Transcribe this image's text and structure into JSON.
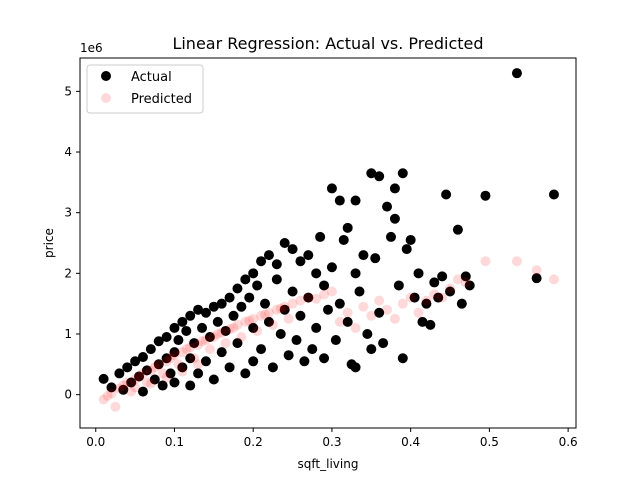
{
  "chart_data": {
    "type": "scatter",
    "title": "Linear Regression: Actual vs. Predicted",
    "xlabel": "sqft_living",
    "ylabel": "price",
    "y_offset_label": "1e6",
    "xlim": [
      -0.02,
      0.61
    ],
    "ylim": [
      -0.55,
      5.55
    ],
    "x_ticks": [
      0.0,
      0.1,
      0.2,
      0.3,
      0.4,
      0.5,
      0.6
    ],
    "x_tick_labels": [
      "0.0",
      "0.1",
      "0.2",
      "0.3",
      "0.4",
      "0.5",
      "0.6"
    ],
    "y_ticks": [
      0,
      1,
      2,
      3,
      4,
      5
    ],
    "y_tick_labels": [
      "0",
      "1",
      "2",
      "3",
      "4",
      "5"
    ],
    "grid": false,
    "legend": "top-left",
    "series": [
      {
        "name": "Actual",
        "color": "#000000",
        "opacity": 1.0,
        "points": [
          [
            0.01,
            0.26
          ],
          [
            0.02,
            0.12
          ],
          [
            0.03,
            0.35
          ],
          [
            0.035,
            0.08
          ],
          [
            0.04,
            0.45
          ],
          [
            0.045,
            0.2
          ],
          [
            0.05,
            0.55
          ],
          [
            0.055,
            0.3
          ],
          [
            0.06,
            0.62
          ],
          [
            0.06,
            0.05
          ],
          [
            0.065,
            0.4
          ],
          [
            0.07,
            0.75
          ],
          [
            0.075,
            0.25
          ],
          [
            0.08,
            0.88
          ],
          [
            0.08,
            0.5
          ],
          [
            0.085,
            0.15
          ],
          [
            0.09,
            0.95
          ],
          [
            0.09,
            0.6
          ],
          [
            0.095,
            0.35
          ],
          [
            0.1,
            1.1
          ],
          [
            0.1,
            0.7
          ],
          [
            0.1,
            0.2
          ],
          [
            0.105,
            0.9
          ],
          [
            0.11,
            1.2
          ],
          [
            0.11,
            0.45
          ],
          [
            0.115,
            1.05
          ],
          [
            0.12,
            1.3
          ],
          [
            0.12,
            0.6
          ],
          [
            0.12,
            0.15
          ],
          [
            0.125,
            0.85
          ],
          [
            0.13,
            1.4
          ],
          [
            0.13,
            0.35
          ],
          [
            0.135,
            1.1
          ],
          [
            0.14,
            1.35
          ],
          [
            0.14,
            0.55
          ],
          [
            0.145,
            0.95
          ],
          [
            0.15,
            1.45
          ],
          [
            0.15,
            0.25
          ],
          [
            0.155,
            1.2
          ],
          [
            0.16,
            1.5
          ],
          [
            0.16,
            0.7
          ],
          [
            0.165,
            1.05
          ],
          [
            0.17,
            1.6
          ],
          [
            0.17,
            0.45
          ],
          [
            0.175,
            1.3
          ],
          [
            0.18,
            1.75
          ],
          [
            0.18,
            0.85
          ],
          [
            0.185,
            1.45
          ],
          [
            0.19,
            1.9
          ],
          [
            0.19,
            0.35
          ],
          [
            0.195,
            1.6
          ],
          [
            0.2,
            2.0
          ],
          [
            0.2,
            1.1
          ],
          [
            0.2,
            0.55
          ],
          [
            0.205,
            1.8
          ],
          [
            0.21,
            2.2
          ],
          [
            0.21,
            0.75
          ],
          [
            0.215,
            1.5
          ],
          [
            0.22,
            2.3
          ],
          [
            0.22,
            1.2
          ],
          [
            0.225,
            0.45
          ],
          [
            0.23,
            1.9
          ],
          [
            0.23,
            2.15
          ],
          [
            0.235,
            1.0
          ],
          [
            0.24,
            2.5
          ],
          [
            0.24,
            1.4
          ],
          [
            0.245,
            0.65
          ],
          [
            0.25,
            2.4
          ],
          [
            0.25,
            1.7
          ],
          [
            0.255,
            0.9
          ],
          [
            0.26,
            2.2
          ],
          [
            0.26,
            1.3
          ],
          [
            0.265,
            0.55
          ],
          [
            0.27,
            2.3
          ],
          [
            0.27,
            1.6
          ],
          [
            0.275,
            0.75
          ],
          [
            0.28,
            2.0
          ],
          [
            0.28,
            1.1
          ],
          [
            0.285,
            2.6
          ],
          [
            0.29,
            1.8
          ],
          [
            0.29,
            0.6
          ],
          [
            0.295,
            1.4
          ],
          [
            0.3,
            3.4
          ],
          [
            0.3,
            2.1
          ],
          [
            0.305,
            0.9
          ],
          [
            0.31,
            3.2
          ],
          [
            0.31,
            1.5
          ],
          [
            0.315,
            2.55
          ],
          [
            0.32,
            2.75
          ],
          [
            0.32,
            1.2
          ],
          [
            0.325,
            0.5
          ],
          [
            0.33,
            3.2
          ],
          [
            0.33,
            2.0
          ],
          [
            0.335,
            1.7
          ],
          [
            0.34,
            2.3
          ],
          [
            0.345,
            1.0
          ],
          [
            0.35,
            3.65
          ],
          [
            0.355,
            2.25
          ],
          [
            0.36,
            3.6
          ],
          [
            0.36,
            1.35
          ],
          [
            0.365,
            0.85
          ],
          [
            0.37,
            3.1
          ],
          [
            0.375,
            2.6
          ],
          [
            0.38,
            3.4
          ],
          [
            0.38,
            2.9
          ],
          [
            0.385,
            1.8
          ],
          [
            0.39,
            3.65
          ],
          [
            0.395,
            2.4
          ],
          [
            0.4,
            2.55
          ],
          [
            0.405,
            1.6
          ],
          [
            0.41,
            2.0
          ],
          [
            0.415,
            1.2
          ],
          [
            0.42,
            1.5
          ],
          [
            0.425,
            1.15
          ],
          [
            0.43,
            1.85
          ],
          [
            0.435,
            1.6
          ],
          [
            0.44,
            1.95
          ],
          [
            0.445,
            3.3
          ],
          [
            0.45,
            1.7
          ],
          [
            0.46,
            2.72
          ],
          [
            0.465,
            1.5
          ],
          [
            0.47,
            1.95
          ],
          [
            0.475,
            1.8
          ],
          [
            0.495,
            3.28
          ],
          [
            0.535,
            5.3
          ],
          [
            0.56,
            1.92
          ],
          [
            0.582,
            3.3
          ],
          [
            0.39,
            0.6
          ],
          [
            0.35,
            0.75
          ],
          [
            0.33,
            0.45
          ]
        ]
      },
      {
        "name": "Predicted",
        "color": "#ff0000",
        "opacity": 0.15,
        "points": [
          [
            0.01,
            -0.08
          ],
          [
            0.015,
            -0.02
          ],
          [
            0.02,
            0.02
          ],
          [
            0.025,
            -0.2
          ],
          [
            0.03,
            0.1
          ],
          [
            0.035,
            0.15
          ],
          [
            0.04,
            0.2
          ],
          [
            0.045,
            0.05
          ],
          [
            0.05,
            0.25
          ],
          [
            0.055,
            0.3
          ],
          [
            0.06,
            0.35
          ],
          [
            0.065,
            0.2
          ],
          [
            0.07,
            0.4
          ],
          [
            0.075,
            0.45
          ],
          [
            0.08,
            0.5
          ],
          [
            0.085,
            0.35
          ],
          [
            0.09,
            0.55
          ],
          [
            0.095,
            0.6
          ],
          [
            0.1,
            0.65
          ],
          [
            0.105,
            0.5
          ],
          [
            0.11,
            0.7
          ],
          [
            0.115,
            0.75
          ],
          [
            0.12,
            0.78
          ],
          [
            0.125,
            0.6
          ],
          [
            0.13,
            0.82
          ],
          [
            0.135,
            0.88
          ],
          [
            0.14,
            0.9
          ],
          [
            0.145,
            0.75
          ],
          [
            0.15,
            0.95
          ],
          [
            0.155,
            1.0
          ],
          [
            0.16,
            1.02
          ],
          [
            0.165,
            0.85
          ],
          [
            0.17,
            1.08
          ],
          [
            0.175,
            1.1
          ],
          [
            0.18,
            1.15
          ],
          [
            0.185,
            0.95
          ],
          [
            0.19,
            1.2
          ],
          [
            0.195,
            1.22
          ],
          [
            0.2,
            1.25
          ],
          [
            0.205,
            1.05
          ],
          [
            0.21,
            1.3
          ],
          [
            0.215,
            1.32
          ],
          [
            0.22,
            1.35
          ],
          [
            0.225,
            1.15
          ],
          [
            0.23,
            1.4
          ],
          [
            0.235,
            1.42
          ],
          [
            0.24,
            1.45
          ],
          [
            0.245,
            1.25
          ],
          [
            0.25,
            1.5
          ],
          [
            0.26,
            1.55
          ],
          [
            0.27,
            1.6
          ],
          [
            0.28,
            1.58
          ],
          [
            0.29,
            1.65
          ],
          [
            0.3,
            1.7
          ],
          [
            0.31,
            1.2
          ],
          [
            0.32,
            1.35
          ],
          [
            0.33,
            1.1
          ],
          [
            0.34,
            1.45
          ],
          [
            0.35,
            1.3
          ],
          [
            0.36,
            1.55
          ],
          [
            0.37,
            1.4
          ],
          [
            0.38,
            1.25
          ],
          [
            0.39,
            1.5
          ],
          [
            0.4,
            1.6
          ],
          [
            0.41,
            1.35
          ],
          [
            0.42,
            1.55
          ],
          [
            0.43,
            1.65
          ],
          [
            0.44,
            1.6
          ],
          [
            0.45,
            1.75
          ],
          [
            0.46,
            1.9
          ],
          [
            0.47,
            1.85
          ],
          [
            0.495,
            2.2
          ],
          [
            0.535,
            2.2
          ],
          [
            0.56,
            2.05
          ],
          [
            0.582,
            1.9
          ],
          [
            0.05,
            0.12
          ],
          [
            0.07,
            0.18
          ],
          [
            0.09,
            0.28
          ],
          [
            0.11,
            0.38
          ],
          [
            0.13,
            0.5
          ]
        ]
      }
    ]
  }
}
